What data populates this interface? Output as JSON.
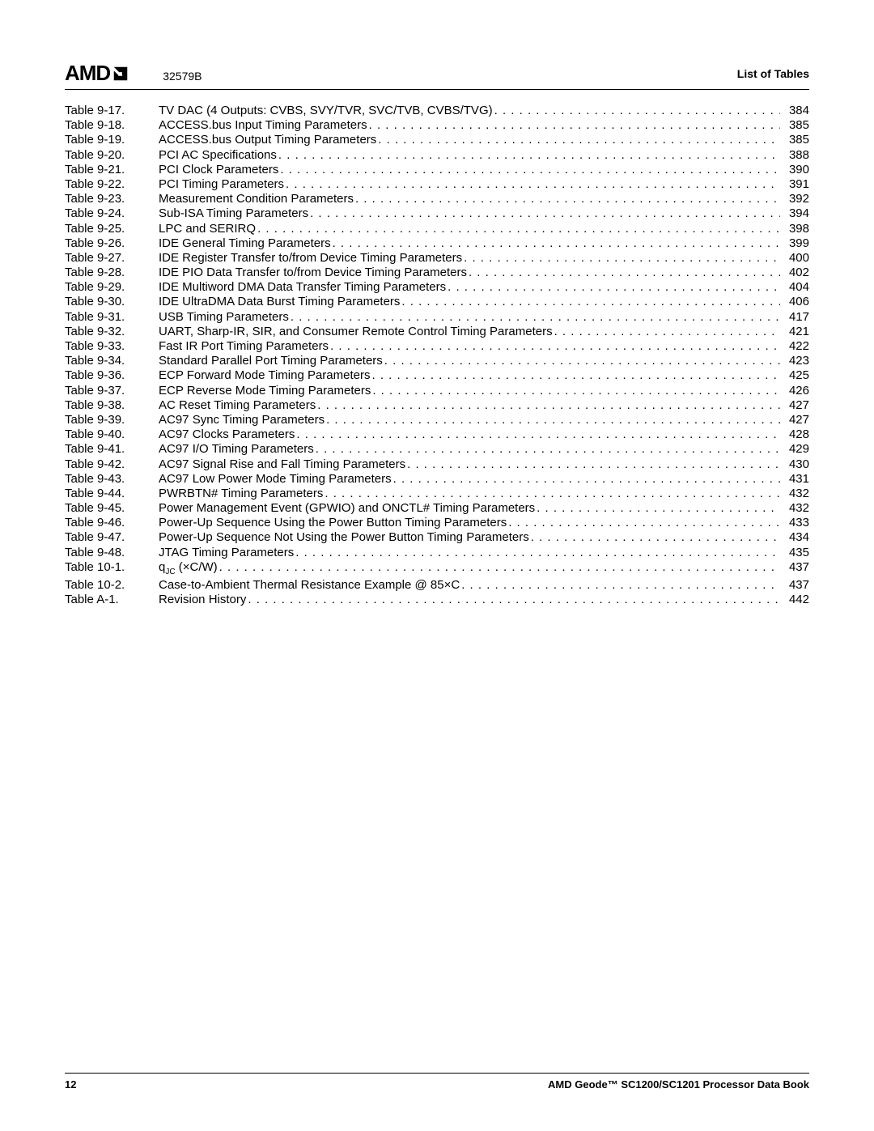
{
  "header": {
    "logo_text": "AMD",
    "doc_id": "32579B",
    "section_title": "List of Tables"
  },
  "footer": {
    "page": "12",
    "title": "AMD Geode™ SC1200/SC1201 Processor Data Book"
  },
  "toc": [
    {
      "label": "Table 9-17.",
      "title": "TV DAC (4 Outputs: CVBS, SVY/TVR, SVC/TVB, CVBS/TVG)",
      "page": "384"
    },
    {
      "label": "Table 9-18.",
      "title": "ACCESS.bus Input Timing Parameters",
      "page": "385"
    },
    {
      "label": "Table 9-19.",
      "title": "ACCESS.bus Output Timing Parameters",
      "page": "385"
    },
    {
      "label": "Table 9-20.",
      "title": "PCI AC Specifications",
      "page": "388"
    },
    {
      "label": "Table 9-21.",
      "title": "PCI Clock Parameters",
      "page": "390"
    },
    {
      "label": "Table 9-22.",
      "title": "PCI Timing Parameters",
      "page": "391"
    },
    {
      "label": "Table 9-23.",
      "title": "Measurement Condition Parameters",
      "page": "392"
    },
    {
      "label": "Table 9-24.",
      "title": "Sub-ISA Timing Parameters",
      "page": "394"
    },
    {
      "label": "Table 9-25.",
      "title": "LPC and SERIRQ",
      "page": "398"
    },
    {
      "label": "Table 9-26.",
      "title": "IDE General Timing Parameters",
      "page": "399"
    },
    {
      "label": "Table 9-27.",
      "title": "IDE Register Transfer to/from Device Timing Parameters",
      "page": "400"
    },
    {
      "label": "Table 9-28.",
      "title": "IDE PIO Data Transfer to/from Device Timing Parameters",
      "page": "402"
    },
    {
      "label": "Table 9-29.",
      "title": "IDE Multiword DMA Data Transfer Timing Parameters",
      "page": "404"
    },
    {
      "label": "Table 9-30.",
      "title": "IDE UltraDMA Data Burst Timing Parameters",
      "page": "406"
    },
    {
      "label": "Table 9-31.",
      "title": "USB Timing Parameters",
      "page": "417"
    },
    {
      "label": "Table 9-32.",
      "title": "UART, Sharp-IR, SIR, and Consumer Remote Control Timing Parameters",
      "page": "421"
    },
    {
      "label": "Table 9-33.",
      "title": "Fast IR Port Timing Parameters",
      "page": "422"
    },
    {
      "label": "Table 9-34.",
      "title": "Standard Parallel Port Timing Parameters",
      "page": "423"
    },
    {
      "label": "Table 9-36.",
      "title": "ECP Forward Mode Timing Parameters",
      "page": "425"
    },
    {
      "label": "Table 9-37.",
      "title": "ECP Reverse Mode Timing Parameters",
      "page": "426"
    },
    {
      "label": "Table 9-38.",
      "title": "AC Reset Timing Parameters",
      "page": "427"
    },
    {
      "label": "Table 9-39.",
      "title": "AC97 Sync Timing Parameters",
      "page": "427"
    },
    {
      "label": "Table 9-40.",
      "title": "AC97 Clocks Parameters",
      "page": "428"
    },
    {
      "label": "Table 9-41.",
      "title": "AC97 I/O Timing Parameters",
      "page": "429"
    },
    {
      "label": "Table 9-42.",
      "title": "AC97 Signal Rise and Fall Timing Parameters",
      "page": "430"
    },
    {
      "label": "Table 9-43.",
      "title": "AC97 Low Power Mode Timing Parameters",
      "page": "431"
    },
    {
      "label": "Table 9-44.",
      "title": "PWRBTN# Timing Parameters",
      "page": "432"
    },
    {
      "label": "Table 9-45.",
      "title": "Power Management Event (GPWIO) and ONCTL# Timing Parameters",
      "page": "432"
    },
    {
      "label": "Table 9-46.",
      "title": "Power-Up Sequence Using the Power Button Timing Parameters",
      "page": "433"
    },
    {
      "label": "Table 9-47.",
      "title": "Power-Up Sequence Not Using the Power Button Timing Parameters",
      "page": "434"
    },
    {
      "label": "Table 9-48.",
      "title": "JTAG Timing Parameters",
      "page": "435"
    },
    {
      "label": "Table 10-1.",
      "title": "q|JC| (×C/W)",
      "page": "437"
    },
    {
      "label": "Table 10-2.",
      "title": "Case-to-Ambient Thermal Resistance Example @ 85×C",
      "page": "437"
    },
    {
      "label": "Table A-1.",
      "title": "Revision History",
      "page": "442"
    }
  ]
}
